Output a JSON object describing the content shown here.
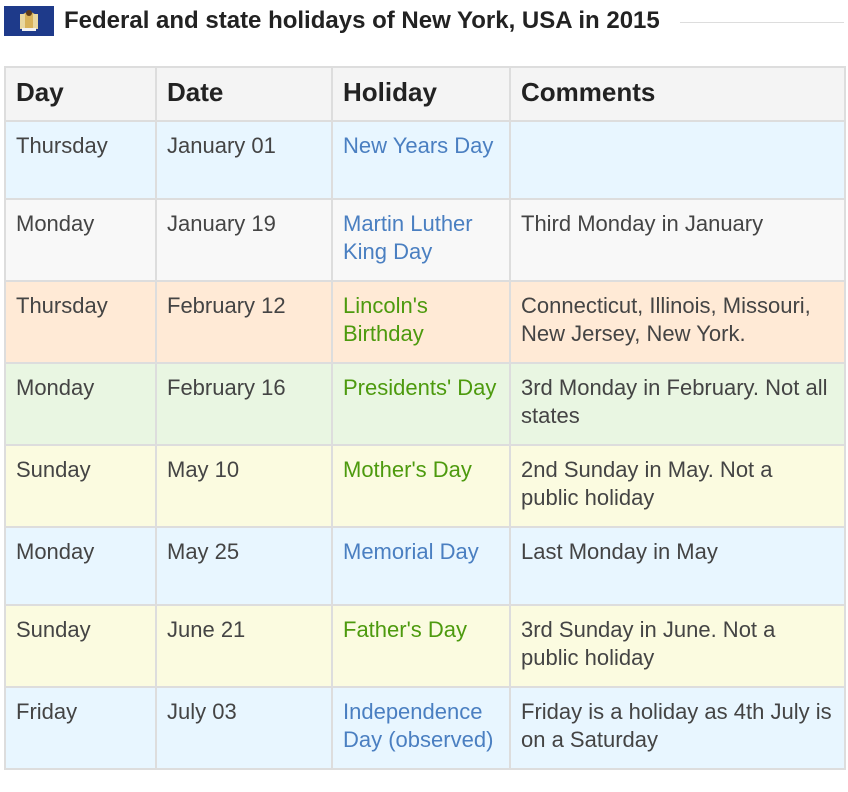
{
  "page": {
    "title": "Federal and state holidays of New York, USA in 2015"
  },
  "table": {
    "headers": [
      "Day",
      "Date",
      "Holiday",
      "Comments"
    ],
    "rows": [
      {
        "day": "Thursday",
        "date": "January 01",
        "holiday": "New Years Day",
        "comment": "",
        "bg": "#e8f6ff",
        "holiday_color": "#4a7fc1"
      },
      {
        "day": "Monday",
        "date": "January 19",
        "holiday": "Martin Luther King Day",
        "comment": "Third Monday in January",
        "bg": "#f8f8f8",
        "holiday_color": "#4a7fc1"
      },
      {
        "day": "Thursday",
        "date": "February 12",
        "holiday": "Lincoln's Birthday",
        "comment": "Connecticut, Illinois, Missouri, New Jersey, New York.",
        "bg": "#ffead6",
        "holiday_color": "#4d9a0e"
      },
      {
        "day": "Monday",
        "date": "February 16",
        "holiday": "Presidents' Day",
        "comment": "3rd Monday in February. Not all states",
        "bg": "#e9f6e2",
        "holiday_color": "#4d9a0e"
      },
      {
        "day": "Sunday",
        "date": "May 10",
        "holiday": "Mother's Day",
        "comment": "2nd Sunday in May. Not a public holiday",
        "bg": "#fbfbe0",
        "holiday_color": "#4d9a0e"
      },
      {
        "day": "Monday",
        "date": "May 25",
        "holiday": "Memorial Day",
        "comment": "Last Monday in May",
        "bg": "#e8f6ff",
        "holiday_color": "#4a7fc1"
      },
      {
        "day": "Sunday",
        "date": "June 21",
        "holiday": "Father's Day",
        "comment": "3rd Sunday in June. Not a public holiday",
        "bg": "#fbfbe0",
        "holiday_color": "#4d9a0e"
      },
      {
        "day": "Friday",
        "date": "July 03",
        "holiday": "Independence Day (observed)",
        "comment": "Friday is a holiday as 4th July is on a Saturday",
        "bg": "#e8f6ff",
        "holiday_color": "#4a7fc1"
      }
    ]
  },
  "icons": {
    "flag": "new-york-state-flag-icon"
  }
}
